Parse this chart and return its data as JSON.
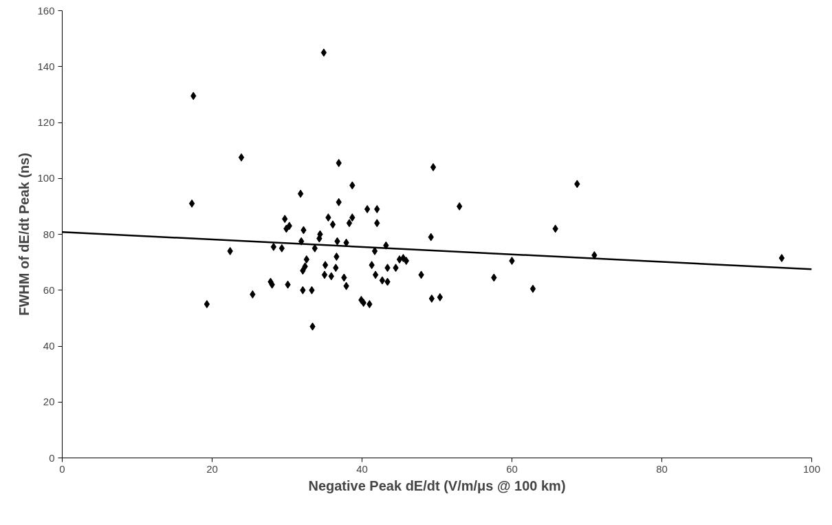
{
  "chart_data": {
    "type": "scatter",
    "xlabel": "Negative Peak dE/dt (V/m/μs @ 100 km)",
    "ylabel": "FWHM of dE/dt Peak (ns)",
    "xlim": [
      0,
      100
    ],
    "ylim": [
      0,
      160
    ],
    "xticks": [
      0,
      20,
      40,
      60,
      80,
      100
    ],
    "yticks": [
      0,
      20,
      40,
      60,
      80,
      100,
      120,
      140,
      160
    ],
    "grid": false,
    "series": [
      {
        "marker": "diamond",
        "color": "#000000",
        "x": [
          17.5,
          17.3,
          19.3,
          22.4,
          23.9,
          25.4,
          27.8,
          28,
          28.2,
          29.3,
          29.7,
          29.9,
          30.1,
          30.3,
          31.8,
          31.9,
          32.1,
          32.1,
          32.2,
          32.4,
          32.6,
          33.3,
          33.4,
          33.7,
          34.3,
          34.4,
          34.9,
          35.0,
          35.1,
          35.5,
          35.9,
          36.1,
          36.5,
          36.6,
          36.7,
          36.9,
          36.9,
          37.6,
          37.9,
          37.9,
          38.3,
          38.7,
          38.7,
          39.9,
          40.2,
          40.7,
          41.0,
          41.3,
          41.7,
          41.8,
          42.0,
          42.0,
          42.7,
          43.2,
          43.4,
          43.4,
          44.5,
          45.0,
          45.5,
          45.9,
          47.9,
          49.2,
          49.3,
          49.5,
          50.4,
          53.0,
          57.6,
          60.0,
          62.8,
          65.8,
          68.7,
          71.0,
          96.0
        ],
        "values": [
          129.5,
          91,
          55,
          74,
          107.5,
          58.5,
          63,
          62,
          75.5,
          75,
          85.5,
          82,
          62,
          83,
          94.5,
          77.5,
          67,
          60,
          81.5,
          68.5,
          71,
          60,
          47,
          75,
          78.5,
          80,
          145,
          65.5,
          69,
          86,
          65,
          83.5,
          68,
          72,
          77.5,
          105.5,
          91.5,
          64.5,
          61.5,
          77,
          84,
          86,
          97.5,
          56.5,
          55.5,
          89,
          55,
          69,
          74,
          65.5,
          84,
          89,
          63.5,
          76,
          68,
          63,
          68,
          71,
          71.5,
          70.5,
          65.5,
          79,
          57,
          104,
          57.5,
          90,
          64.5,
          70.5,
          60.5,
          82,
          98,
          72.5,
          71.5
        ]
      },
      {
        "type": "line",
        "marker": "none",
        "color": "#000000",
        "line_style": "solid",
        "x": [
          0,
          100
        ],
        "values": [
          80.8,
          67.5
        ]
      }
    ]
  }
}
